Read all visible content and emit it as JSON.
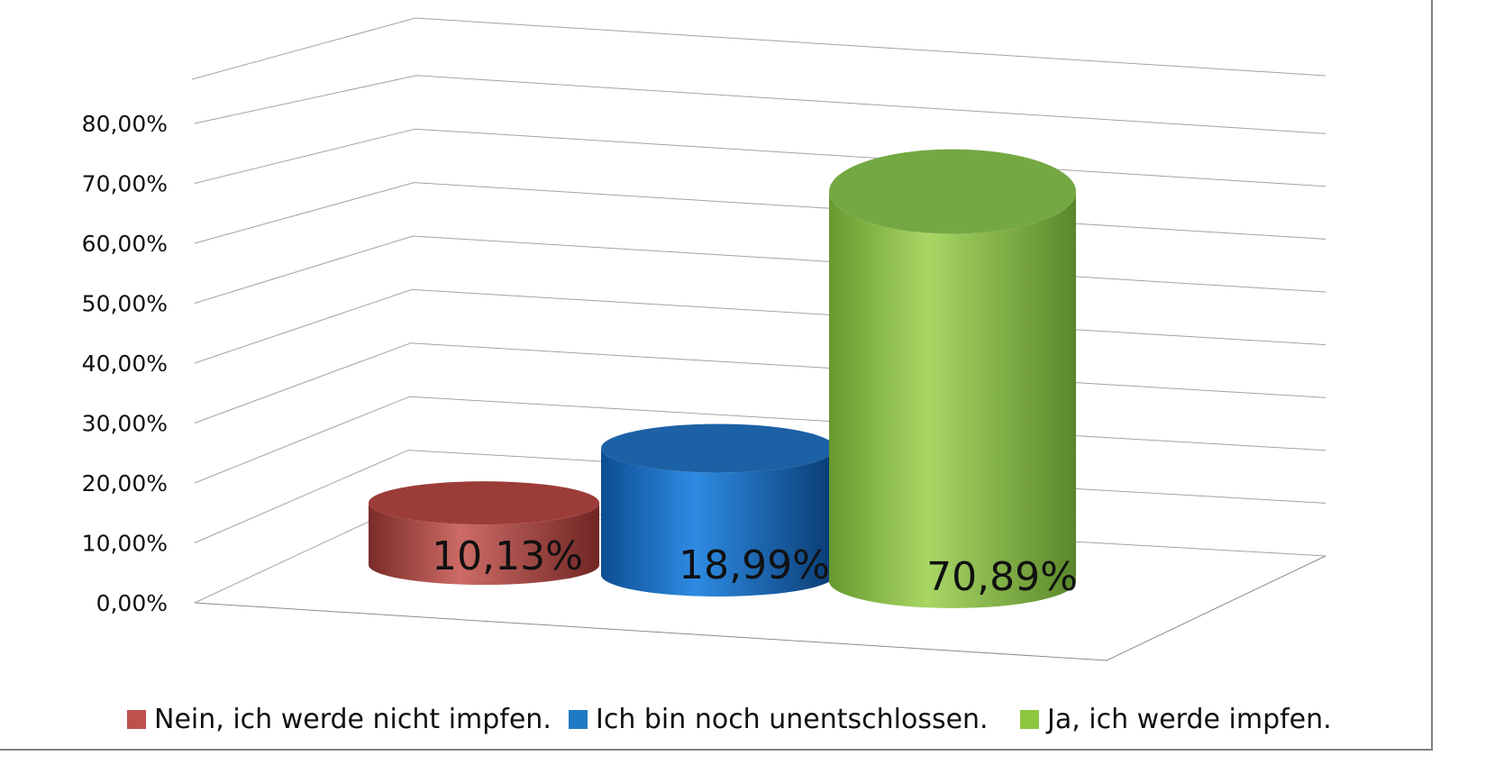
{
  "chart_data": {
    "type": "bar",
    "style": "3d-cylinder",
    "title": "",
    "xlabel": "",
    "ylabel": "",
    "value_suffix": "%",
    "decimal_separator": ",",
    "grid": true,
    "legend_position": "bottom",
    "ylim": [
      0,
      80
    ],
    "yticks": [
      0,
      10,
      20,
      30,
      40,
      50,
      60,
      70,
      80
    ],
    "ytick_labels": [
      "0,00%",
      "10,00%",
      "20,00%",
      "30,00%",
      "40,00%",
      "50,00%",
      "60,00%",
      "70,00%",
      "80,00%"
    ],
    "categories": [
      "Nein, ich werde nicht impfen.",
      "Ich bin noch unentschlossen.",
      "Ja, ich werde impfen."
    ],
    "values": [
      10.13,
      18.99,
      70.89
    ],
    "series": [
      {
        "name": "Nein, ich werde nicht impfen.",
        "value": 10.13,
        "label": "10,13%",
        "swatch_color": "#C0504D",
        "top_color": "#9C3C39",
        "body_edge_color": "#7A2B28",
        "body_light_color": "#CD6B66",
        "body_dark_color": "#702523"
      },
      {
        "name": "Ich bin noch unentschlossen.",
        "value": 18.99,
        "label": "18,99%",
        "swatch_color": "#1F7AC4",
        "top_color": "#1C61A5",
        "body_edge_color": "#0D4D92",
        "body_light_color": "#2E8BE3",
        "body_dark_color": "#0A3B72"
      },
      {
        "name": "Ja, ich werde impfen.",
        "value": 70.89,
        "label": "70,89%",
        "swatch_color": "#8DC63F",
        "top_color": "#74A843",
        "body_edge_color": "#67992F",
        "body_light_color": "#A9D765",
        "body_dark_color": "#5A872A"
      }
    ],
    "grid_color": "#A3A3A3",
    "floor_color": "#8C8C8C",
    "frame_color": "#7F7F7F"
  }
}
